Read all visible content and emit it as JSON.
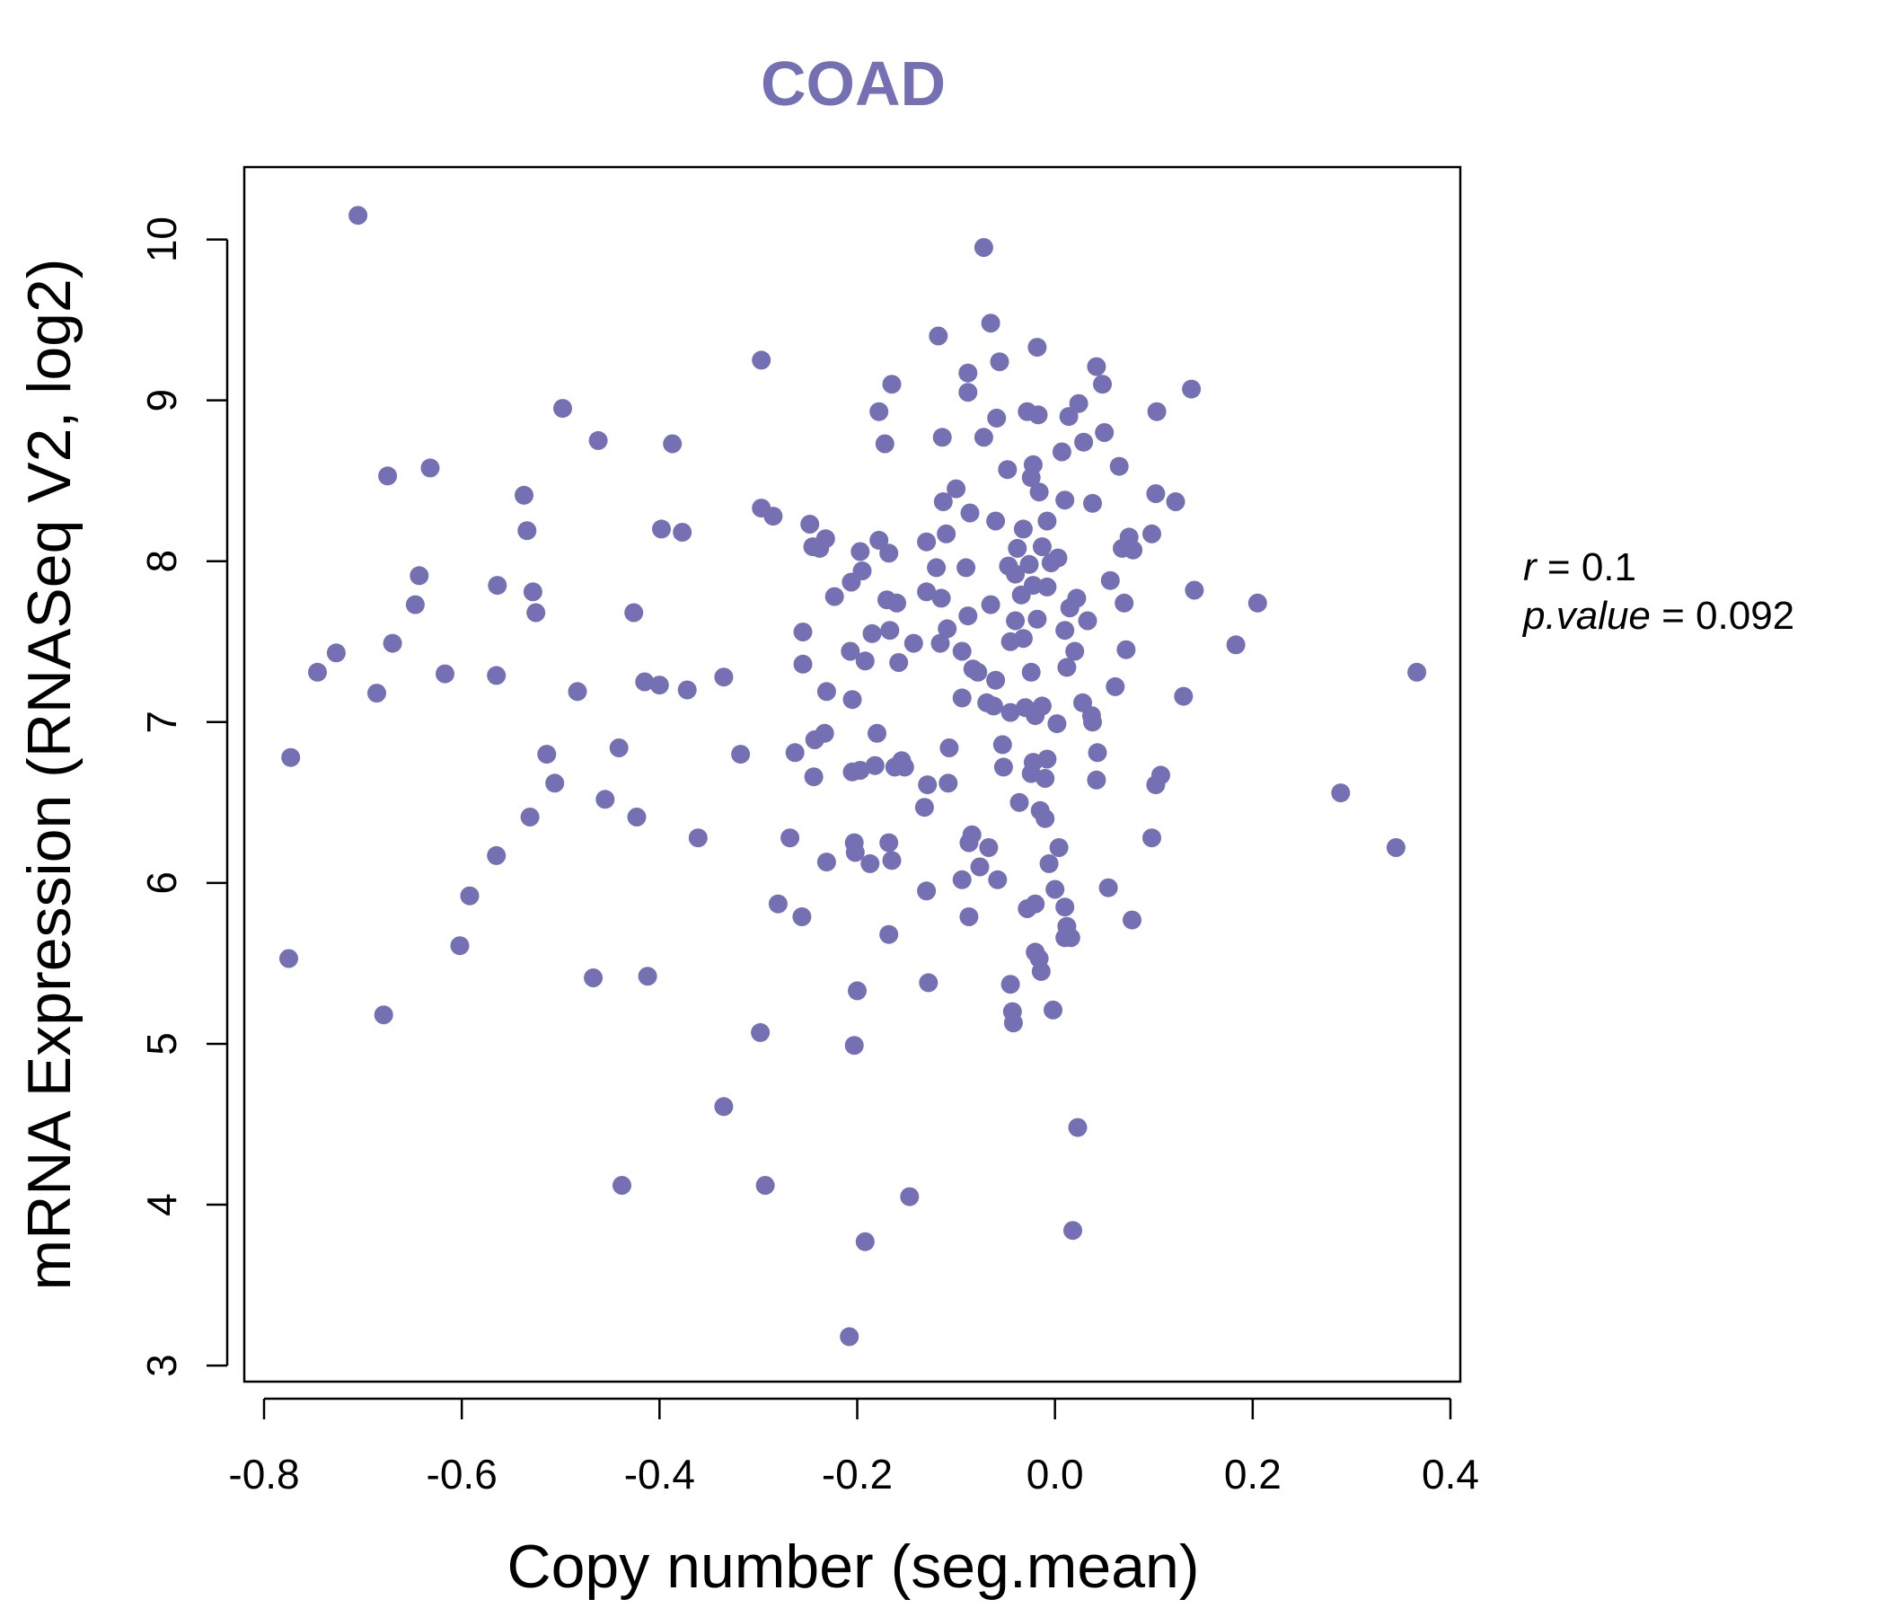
{
  "chart_data": {
    "type": "scatter",
    "title": "COAD",
    "xlabel": "Copy number (seg.mean)",
    "ylabel": "mRNA Expression (RNASeq V2, log2)",
    "xlim": [
      -0.82,
      0.41
    ],
    "ylim": [
      2.9,
      10.45
    ],
    "x_ticks": [
      "-0.8",
      "-0.6",
      "-0.4",
      "-0.2",
      "0.0",
      "0.2",
      "0.4"
    ],
    "y_ticks": [
      "3",
      "4",
      "5",
      "6",
      "7",
      "8",
      "9",
      "10"
    ],
    "color": "#7570b3",
    "grid": false,
    "legend": "none",
    "stats": {
      "r_label": "r",
      "r_value": "0.1",
      "p_label": "p.value",
      "p_value": "0.092"
    },
    "points": [
      [
        -0.705,
        10.15
      ],
      [
        -0.072,
        9.95
      ],
      [
        -0.297,
        9.25
      ],
      [
        -0.065,
        9.48
      ],
      [
        -0.118,
        9.4
      ],
      [
        -0.498,
        8.95
      ],
      [
        -0.462,
        8.75
      ],
      [
        -0.387,
        8.73
      ],
      [
        -0.675,
        8.53
      ],
      [
        -0.632,
        8.58
      ],
      [
        -0.537,
        8.41
      ],
      [
        -0.534,
        8.19
      ],
      [
        -0.398,
        8.2
      ],
      [
        -0.377,
        8.18
      ],
      [
        -0.297,
        8.33
      ],
      [
        -0.285,
        8.28
      ],
      [
        -0.238,
        8.08
      ],
      [
        -0.248,
        8.23
      ],
      [
        -0.165,
        9.1
      ],
      [
        -0.178,
        8.93
      ],
      [
        -0.172,
        8.73
      ],
      [
        -0.088,
        9.17
      ],
      [
        -0.088,
        9.05
      ],
      [
        -0.056,
        9.24
      ],
      [
        -0.018,
        9.33
      ],
      [
        0.042,
        9.21
      ],
      [
        0.048,
        9.1
      ],
      [
        0.138,
        9.07
      ],
      [
        0.103,
        8.93
      ],
      [
        -0.114,
        8.77
      ],
      [
        -0.072,
        8.77
      ],
      [
        -0.059,
        8.89
      ],
      [
        -0.028,
        8.93
      ],
      [
        -0.017,
        8.91
      ],
      [
        0.024,
        8.98
      ],
      [
        0.014,
        8.9
      ],
      [
        0.05,
        8.8
      ],
      [
        0.029,
        8.74
      ],
      [
        0.007,
        8.68
      ],
      [
        0.065,
        8.59
      ],
      [
        -0.048,
        8.57
      ],
      [
        -0.022,
        8.6
      ],
      [
        -0.1,
        8.45
      ],
      [
        -0.113,
        8.37
      ],
      [
        -0.016,
        8.43
      ],
      [
        -0.024,
        8.52
      ],
      [
        0.01,
        8.38
      ],
      [
        0.038,
        8.36
      ],
      [
        0.102,
        8.42
      ],
      [
        0.122,
        8.37
      ],
      [
        -0.245,
        8.09
      ],
      [
        -0.232,
        8.14
      ],
      [
        -0.178,
        8.13
      ],
      [
        -0.197,
        8.06
      ],
      [
        -0.168,
        8.05
      ],
      [
        -0.13,
        8.12
      ],
      [
        -0.11,
        8.17
      ],
      [
        -0.086,
        8.3
      ],
      [
        -0.06,
        8.25
      ],
      [
        -0.032,
        8.2
      ],
      [
        -0.008,
        8.25
      ],
      [
        -0.038,
        8.08
      ],
      [
        -0.026,
        7.98
      ],
      [
        -0.013,
        8.09
      ],
      [
        -0.004,
        7.99
      ],
      [
        -0.04,
        7.92
      ],
      [
        -0.047,
        7.97
      ],
      [
        -0.022,
        7.85
      ],
      [
        -0.008,
        7.84
      ],
      [
        0.003,
        8.02
      ],
      [
        0.068,
        8.08
      ],
      [
        0.075,
        8.15
      ],
      [
        0.098,
        8.17
      ],
      [
        0.056,
        7.88
      ],
      [
        0.079,
        8.07
      ],
      [
        -0.643,
        7.91
      ],
      [
        -0.564,
        7.85
      ],
      [
        -0.528,
        7.81
      ],
      [
        -0.647,
        7.73
      ],
      [
        -0.525,
        7.68
      ],
      [
        -0.426,
        7.68
      ],
      [
        -0.727,
        7.43
      ],
      [
        -0.67,
        7.49
      ],
      [
        -0.746,
        7.31
      ],
      [
        -0.617,
        7.3
      ],
      [
        -0.565,
        7.29
      ],
      [
        -0.686,
        7.18
      ],
      [
        -0.483,
        7.19
      ],
      [
        -0.415,
        7.25
      ],
      [
        -0.4,
        7.23
      ],
      [
        -0.372,
        7.2
      ],
      [
        -0.335,
        7.28
      ],
      [
        -0.223,
        7.78
      ],
      [
        -0.206,
        7.87
      ],
      [
        -0.195,
        7.94
      ],
      [
        -0.17,
        7.76
      ],
      [
        -0.16,
        7.74
      ],
      [
        -0.13,
        7.81
      ],
      [
        -0.115,
        7.77
      ],
      [
        -0.12,
        7.96
      ],
      [
        -0.09,
        7.96
      ],
      [
        -0.065,
        7.73
      ],
      [
        -0.034,
        7.79
      ],
      [
        -0.018,
        7.64
      ],
      [
        0.015,
        7.71
      ],
      [
        0.022,
        7.77
      ],
      [
        0.033,
        7.63
      ],
      [
        0.07,
        7.74
      ],
      [
        0.141,
        7.82
      ],
      [
        0.205,
        7.74
      ],
      [
        0.183,
        7.48
      ],
      [
        -0.255,
        7.56
      ],
      [
        -0.255,
        7.36
      ],
      [
        -0.207,
        7.44
      ],
      [
        -0.192,
        7.38
      ],
      [
        -0.185,
        7.55
      ],
      [
        -0.167,
        7.57
      ],
      [
        -0.158,
        7.37
      ],
      [
        -0.143,
        7.49
      ],
      [
        -0.116,
        7.49
      ],
      [
        -0.109,
        7.58
      ],
      [
        -0.088,
        7.66
      ],
      [
        -0.094,
        7.44
      ],
      [
        -0.083,
        7.33
      ],
      [
        -0.078,
        7.31
      ],
      [
        -0.06,
        7.26
      ],
      [
        -0.045,
        7.5
      ],
      [
        -0.04,
        7.63
      ],
      [
        -0.032,
        7.52
      ],
      [
        -0.024,
        7.31
      ],
      [
        0.01,
        7.57
      ],
      [
        0.012,
        7.34
      ],
      [
        0.02,
        7.44
      ],
      [
        0.072,
        7.45
      ],
      [
        0.061,
        7.22
      ],
      [
        0.13,
        7.16
      ],
      [
        0.366,
        7.31
      ],
      [
        -0.231,
        7.19
      ],
      [
        -0.205,
        7.14
      ],
      [
        -0.094,
        7.15
      ],
      [
        -0.069,
        7.12
      ],
      [
        -0.062,
        7.1
      ],
      [
        -0.045,
        7.06
      ],
      [
        -0.03,
        7.09
      ],
      [
        -0.02,
        7.04
      ],
      [
        -0.013,
        7.1
      ],
      [
        0.002,
        6.99
      ],
      [
        0.028,
        7.12
      ],
      [
        0.037,
        7.04
      ],
      [
        0.038,
        7.0
      ],
      [
        -0.514,
        6.8
      ],
      [
        -0.441,
        6.84
      ],
      [
        -0.318,
        6.8
      ],
      [
        -0.263,
        6.81
      ],
      [
        -0.243,
        6.89
      ],
      [
        -0.233,
        6.93
      ],
      [
        -0.18,
        6.93
      ],
      [
        -0.244,
        6.66
      ],
      [
        -0.205,
        6.69
      ],
      [
        -0.197,
        6.7
      ],
      [
        -0.182,
        6.73
      ],
      [
        -0.162,
        6.72
      ],
      [
        -0.155,
        6.76
      ],
      [
        -0.152,
        6.72
      ],
      [
        -0.107,
        6.84
      ],
      [
        -0.053,
        6.86
      ],
      [
        -0.052,
        6.72
      ],
      [
        -0.022,
        6.75
      ],
      [
        -0.024,
        6.68
      ],
      [
        -0.008,
        6.77
      ],
      [
        -0.01,
        6.65
      ],
      [
        0.043,
        6.81
      ],
      [
        0.042,
        6.64
      ],
      [
        0.102,
        6.61
      ],
      [
        0.107,
        6.67
      ],
      [
        -0.773,
        6.78
      ],
      [
        -0.506,
        6.62
      ],
      [
        -0.455,
        6.52
      ],
      [
        -0.531,
        6.41
      ],
      [
        -0.423,
        6.41
      ],
      [
        -0.129,
        6.61
      ],
      [
        -0.108,
        6.62
      ],
      [
        -0.132,
        6.47
      ],
      [
        -0.036,
        6.5
      ],
      [
        -0.015,
        6.45
      ],
      [
        -0.01,
        6.4
      ],
      [
        0.289,
        6.56
      ],
      [
        -0.361,
        6.28
      ],
      [
        -0.268,
        6.28
      ],
      [
        -0.203,
        6.25
      ],
      [
        -0.202,
        6.19
      ],
      [
        -0.168,
        6.25
      ],
      [
        -0.165,
        6.14
      ],
      [
        -0.187,
        6.12
      ],
      [
        -0.231,
        6.13
      ],
      [
        -0.084,
        6.3
      ],
      [
        -0.087,
        6.25
      ],
      [
        -0.067,
        6.22
      ],
      [
        -0.076,
        6.1
      ],
      [
        -0.094,
        6.02
      ],
      [
        -0.058,
        6.02
      ],
      [
        0.004,
        6.22
      ],
      [
        -0.006,
        6.12
      ],
      [
        0.098,
        6.28
      ],
      [
        0.345,
        6.22
      ],
      [
        -0.565,
        6.17
      ],
      [
        -0.592,
        5.92
      ],
      [
        -0.602,
        5.61
      ],
      [
        -0.28,
        5.87
      ],
      [
        -0.256,
        5.79
      ],
      [
        -0.13,
        5.95
      ],
      [
        -0.087,
        5.79
      ],
      [
        -0.168,
        5.68
      ],
      [
        -0.028,
        5.84
      ],
      [
        -0.02,
        5.87
      ],
      [
        0.0,
        5.96
      ],
      [
        0.01,
        5.85
      ],
      [
        0.012,
        5.73
      ],
      [
        0.016,
        5.66
      ],
      [
        0.01,
        5.66
      ],
      [
        0.054,
        5.97
      ],
      [
        0.078,
        5.77
      ],
      [
        -0.775,
        5.53
      ],
      [
        -0.679,
        5.18
      ],
      [
        -0.467,
        5.41
      ],
      [
        -0.412,
        5.42
      ],
      [
        -0.2,
        5.33
      ],
      [
        -0.128,
        5.38
      ],
      [
        -0.045,
        5.37
      ],
      [
        -0.02,
        5.57
      ],
      [
        -0.016,
        5.53
      ],
      [
        -0.014,
        5.45
      ],
      [
        -0.002,
        5.21
      ],
      [
        -0.043,
        5.2
      ],
      [
        -0.042,
        5.13
      ],
      [
        -0.298,
        5.07
      ],
      [
        -0.203,
        4.99
      ],
      [
        -0.335,
        4.61
      ],
      [
        -0.438,
        4.12
      ],
      [
        -0.293,
        4.12
      ],
      [
        -0.147,
        4.05
      ],
      [
        0.023,
        4.48
      ],
      [
        0.018,
        3.84
      ],
      [
        -0.192,
        3.77
      ],
      [
        -0.208,
        3.18
      ]
    ]
  }
}
